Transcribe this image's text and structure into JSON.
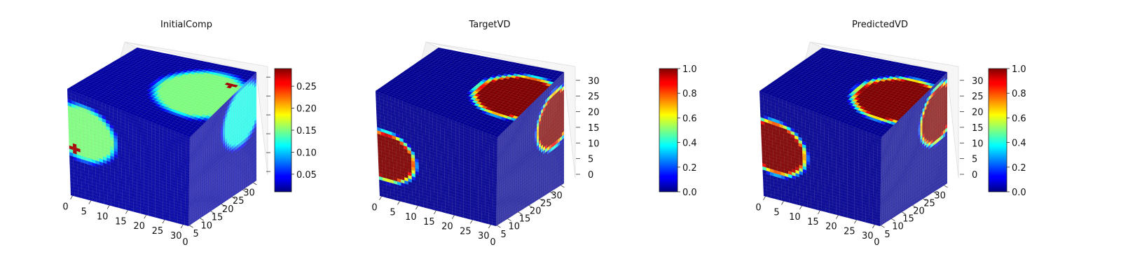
{
  "chart_data": [
    {
      "type": "heatmap",
      "subtype": "3d-voxel-cube",
      "title": "InitialComp",
      "grid_size": [
        32,
        32,
        32
      ],
      "colormap": "jet",
      "axes": {
        "x_ticks": [
          "0",
          "5",
          "10",
          "15",
          "20",
          "25",
          "30"
        ],
        "y_ticks": [
          "0",
          "5",
          "10",
          "15",
          "20",
          "25",
          "30"
        ],
        "z_ticks": []
      },
      "colorbar": {
        "min": 0.01,
        "max": 0.29,
        "ticks": [
          "0.05",
          "0.10",
          "0.15",
          "0.20",
          "0.25"
        ]
      },
      "background_value": 0.02,
      "blobs": [
        {
          "face": "top",
          "cu": 0.78,
          "cv": 0.45,
          "r": 0.36,
          "value": 0.15
        },
        {
          "face": "front",
          "cu": 0.13,
          "cv": 0.37,
          "r": 0.28,
          "value": 0.15
        },
        {
          "face": "side",
          "cu": 0.78,
          "cv": 0.28,
          "r": 0.3,
          "value": 0.12
        }
      ],
      "hot_spots": [
        {
          "face": "front",
          "cu": 0.05,
          "cv": 0.55,
          "r": 0.035,
          "value": 0.28
        },
        {
          "face": "top",
          "cu": 0.92,
          "cv": 0.24,
          "r": 0.035,
          "value": 0.28
        }
      ]
    },
    {
      "type": "heatmap",
      "subtype": "3d-voxel-cube",
      "title": "TargetVD",
      "grid_size": [
        32,
        32,
        32
      ],
      "colormap": "jet",
      "axes": {
        "x_ticks": [
          "0",
          "5",
          "10",
          "15",
          "20",
          "25",
          "30"
        ],
        "y_ticks": [
          "0",
          "5",
          "10",
          "15",
          "20",
          "25",
          "30"
        ],
        "z_ticks": [
          "0",
          "5",
          "10",
          "15",
          "20",
          "25",
          "30"
        ]
      },
      "colorbar": {
        "min": 0.0,
        "max": 1.0,
        "ticks": [
          "0.0",
          "0.2",
          "0.4",
          "0.6",
          "0.8",
          "1.0"
        ]
      },
      "background_value": 0.02,
      "blobs": [
        {
          "face": "top",
          "cu": 0.85,
          "cv": 0.45,
          "r": 0.32,
          "value": 1.0
        },
        {
          "face": "front",
          "cu": 0.08,
          "cv": 0.6,
          "r": 0.25,
          "value": 1.0
        },
        {
          "face": "side",
          "cu": 0.85,
          "cv": 0.35,
          "r": 0.27,
          "value": 1.0
        }
      ],
      "hot_spots": []
    },
    {
      "type": "heatmap",
      "subtype": "3d-voxel-cube",
      "title": "PredictedVD",
      "grid_size": [
        32,
        32,
        32
      ],
      "colormap": "jet",
      "axes": {
        "x_ticks": [
          "0",
          "5",
          "10",
          "15",
          "20",
          "25",
          "30"
        ],
        "y_ticks": [
          "0",
          "5",
          "10",
          "15",
          "20",
          "25",
          "30"
        ],
        "z_ticks": [
          "0",
          "5",
          "10",
          "15",
          "20",
          "25",
          "30"
        ]
      },
      "colorbar": {
        "min": 0.0,
        "max": 1.0,
        "ticks": [
          "0.0",
          "0.2",
          "0.4",
          "0.6",
          "0.8",
          "1.0"
        ]
      },
      "background_value": 0.02,
      "blobs": [
        {
          "face": "top",
          "cu": 0.85,
          "cv": 0.5,
          "r": 0.33,
          "value": 1.0
        },
        {
          "face": "front",
          "cu": 0.12,
          "cv": 0.5,
          "r": 0.27,
          "value": 1.0
        },
        {
          "face": "side",
          "cu": 0.85,
          "cv": 0.3,
          "r": 0.27,
          "value": 1.0
        }
      ],
      "hot_spots": []
    }
  ]
}
